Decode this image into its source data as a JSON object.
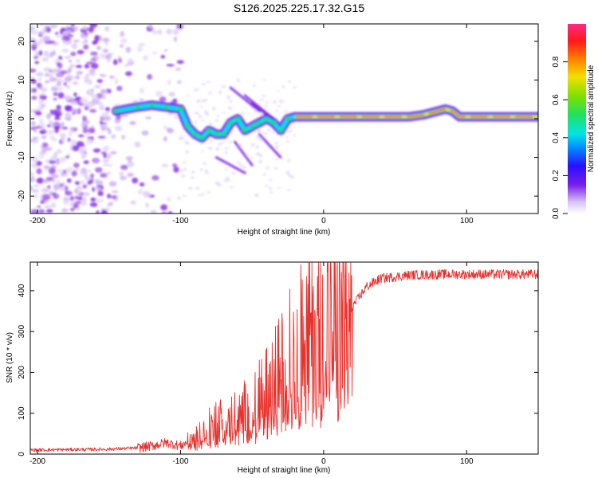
{
  "title": "S126.2025.225.17.32.G15",
  "chart_data": [
    {
      "type": "heatmap",
      "xlabel": "Height of straight line (km)",
      "ylabel": "Frequency (Hz)",
      "xlim": [
        -205,
        150
      ],
      "ylim": [
        -24.5,
        24.5
      ],
      "xticks": [
        -200,
        -100,
        0,
        100
      ],
      "yticks": [
        -20,
        -10,
        0,
        10,
        20
      ],
      "colorbar": {
        "label": "Normalized spectral amplitude",
        "range": [
          0,
          1
        ],
        "ticks": [
          "0.0",
          "0.2",
          "0.4",
          "0.6",
          "0.8"
        ],
        "tick_values": [
          0,
          0.2,
          0.4,
          0.6,
          0.8
        ]
      },
      "ridge": {
        "x": [
          -145,
          -130,
          -120,
          -110,
          -100,
          -95,
          -90,
          -85,
          -80,
          -75,
          -70,
          -65,
          -60,
          -55,
          -50,
          -45,
          -40,
          -35,
          -30,
          -25,
          -20,
          -10,
          0,
          10,
          20,
          40,
          60,
          70,
          80,
          85,
          90,
          95,
          100,
          110,
          120,
          130,
          140,
          150
        ],
        "y": [
          2,
          3,
          3.5,
          3,
          2.5,
          -2,
          -4,
          -5,
          -3,
          -4,
          -4,
          -1,
          0,
          -3,
          -2,
          -1,
          0,
          -1,
          -3,
          0,
          0.5,
          0.5,
          0.5,
          0.5,
          0.5,
          0.5,
          0.5,
          1,
          2,
          2.5,
          2,
          0.5,
          0.5,
          0.5,
          0.5,
          0.5,
          0.5,
          0.5
        ]
      },
      "noise_region": [
        -205,
        -150
      ]
    },
    {
      "type": "line",
      "xlabel": "Height of straight line (km)",
      "ylabel": "SNR (10 * v/v)",
      "xlim": [
        -205,
        150
      ],
      "ylim": [
        0,
        470
      ],
      "xticks": [
        -200,
        -100,
        0,
        100
      ],
      "yticks": [
        0,
        100,
        200,
        300,
        400
      ],
      "color": "#e8322e",
      "envelope": {
        "x": [
          -205,
          -150,
          -130,
          -120,
          -110,
          -100,
          -90,
          -80,
          -70,
          -60,
          -50,
          -40,
          -30,
          -20,
          -10,
          0,
          10,
          20,
          30,
          40,
          60,
          80,
          100,
          120,
          150
        ],
        "y": [
          10,
          12,
          15,
          20,
          28,
          20,
          40,
          65,
          85,
          90,
          120,
          150,
          200,
          260,
          300,
          320,
          330,
          360,
          410,
          430,
          438,
          440,
          440,
          440,
          440
        ]
      }
    }
  ]
}
